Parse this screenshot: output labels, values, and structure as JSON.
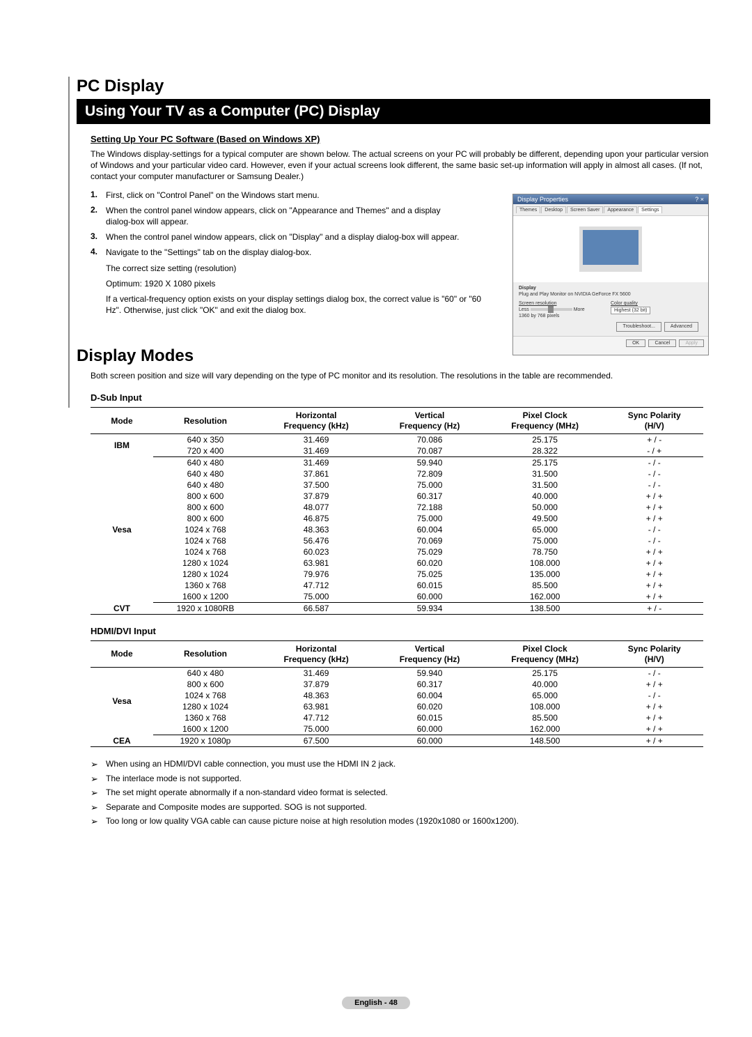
{
  "section_title": "PC Display",
  "main_heading": "Using Your TV as a Computer (PC) Display",
  "setup_heading": "Setting Up Your PC Software (Based on Windows XP)",
  "intro_para": "The Windows display-settings for a typical computer are shown below. The actual screens on your PC will probably be different, depending upon your particular version of Windows and your particular video card. However, even if your actual screens look different, the same basic set-up information will apply in almost all cases. (If not, contact your computer manufacturer or Samsung Dealer.)",
  "steps": [
    {
      "n": "1.",
      "t": "First, click on \"Control Panel\" on the Windows start menu."
    },
    {
      "n": "2.",
      "t": "When the control panel window appears, click on \"Appearance and Themes\" and a display dialog-box will appear."
    },
    {
      "n": "3.",
      "t": "When the control panel window appears, click on \"Display\" and a display dialog-box will appear."
    },
    {
      "n": "4.",
      "t": "Navigate to the \"Settings\" tab on the display dialog-box."
    }
  ],
  "step4_sub1": "The correct size setting (resolution)",
  "step4_sub2": "Optimum: 1920 X 1080 pixels",
  "step4_sub3": "If a vertical-frequency option exists on your display settings dialog box, the correct value is \"60\" or \"60 Hz\". Otherwise, just click \"OK\" and exit the dialog box.",
  "illus": {
    "title": "Display Properties",
    "tabs": [
      "Themes",
      "Desktop",
      "Screen Saver",
      "Appearance",
      "Settings"
    ],
    "display_lbl": "Display",
    "display_val": "Plug and Play Monitor on NVIDIA GeForce FX 5600",
    "res_lbl": "Screen resolution",
    "qual_lbl": "Color quality",
    "less": "Less",
    "more": "More",
    "res_val": "1360 by 768 pixels",
    "qual_val": "Highest (32 bit)",
    "btn_troubleshoot": "Troubleshoot...",
    "btn_advanced": "Advanced",
    "btn_ok": "OK",
    "btn_cancel": "Cancel",
    "btn_apply": "Apply"
  },
  "modes_title": "Display Modes",
  "modes_intro": "Both screen position and size will vary depending on the type of PC monitor and its resolution. The resolutions in the table are recommended.",
  "table_dsub_label": "D-Sub Input",
  "table_hdmi_label": "HDMI/DVI Input",
  "headers": {
    "mode": "Mode",
    "res": "Resolution",
    "hfreq": "Horizontal Frequency (kHz)",
    "vfreq": "Vertical Frequency (Hz)",
    "pclk": "Pixel Clock Frequency (MHz)",
    "sync": "Sync Polarity (H/V)"
  },
  "dsub": [
    {
      "g": "IBM",
      "rows": [
        [
          "640 x 350",
          "31.469",
          "70.086",
          "25.175",
          "+ / -"
        ],
        [
          "720 x 400",
          "31.469",
          "70.087",
          "28.322",
          "- / +"
        ]
      ]
    },
    {
      "g": "Vesa",
      "rows": [
        [
          "640 x 480",
          "31.469",
          "59.940",
          "25.175",
          "- / -"
        ],
        [
          "640 x 480",
          "37.861",
          "72.809",
          "31.500",
          "- / -"
        ],
        [
          "640 x 480",
          "37.500",
          "75.000",
          "31.500",
          "- / -"
        ],
        [
          "800 x 600",
          "37.879",
          "60.317",
          "40.000",
          "+ / +"
        ],
        [
          "800 x 600",
          "48.077",
          "72.188",
          "50.000",
          "+ / +"
        ],
        [
          "800 x 600",
          "46.875",
          "75.000",
          "49.500",
          "+ / +"
        ],
        [
          "1024 x 768",
          "48.363",
          "60.004",
          "65.000",
          "- / -"
        ],
        [
          "1024 x 768",
          "56.476",
          "70.069",
          "75.000",
          "- / -"
        ],
        [
          "1024 x 768",
          "60.023",
          "75.029",
          "78.750",
          "+ / +"
        ],
        [
          "1280 x 1024",
          "63.981",
          "60.020",
          "108.000",
          "+ / +"
        ],
        [
          "1280 x 1024",
          "79.976",
          "75.025",
          "135.000",
          "+ / +"
        ],
        [
          "1360 x 768",
          "47.712",
          "60.015",
          "85.500",
          "+ / +"
        ],
        [
          "1600 x 1200",
          "75.000",
          "60.000",
          "162.000",
          "+ / +"
        ]
      ]
    },
    {
      "g": "CVT",
      "rows": [
        [
          "1920 x 1080RB",
          "66.587",
          "59.934",
          "138.500",
          "+ / -"
        ]
      ]
    }
  ],
  "hdmi": [
    {
      "g": "Vesa",
      "rows": [
        [
          "640 x 480",
          "31.469",
          "59.940",
          "25.175",
          "- / -"
        ],
        [
          "800 x 600",
          "37.879",
          "60.317",
          "40.000",
          "+ / +"
        ],
        [
          "1024 x 768",
          "48.363",
          "60.004",
          "65.000",
          "- / -"
        ],
        [
          "1280 x 1024",
          "63.981",
          "60.020",
          "108.000",
          "+ / +"
        ],
        [
          "1360 x 768",
          "47.712",
          "60.015",
          "85.500",
          "+ / +"
        ],
        [
          "1600 x 1200",
          "75.000",
          "60.000",
          "162.000",
          "+ / +"
        ]
      ]
    },
    {
      "g": "CEA",
      "rows": [
        [
          "1920 x 1080p",
          "67.500",
          "60.000",
          "148.500",
          "+ / +"
        ]
      ]
    }
  ],
  "notes": [
    "When using an HDMI/DVI cable connection, you must use the HDMI IN 2 jack.",
    "The interlace mode is not supported.",
    "The set might operate abnormally if a non-standard video format is selected.",
    "Separate and Composite modes are supported. SOG is not supported.",
    "Too long or low quality VGA cable can cause picture noise at high resolution modes (1920x1080 or 1600x1200)."
  ],
  "footer": "English - 48"
}
